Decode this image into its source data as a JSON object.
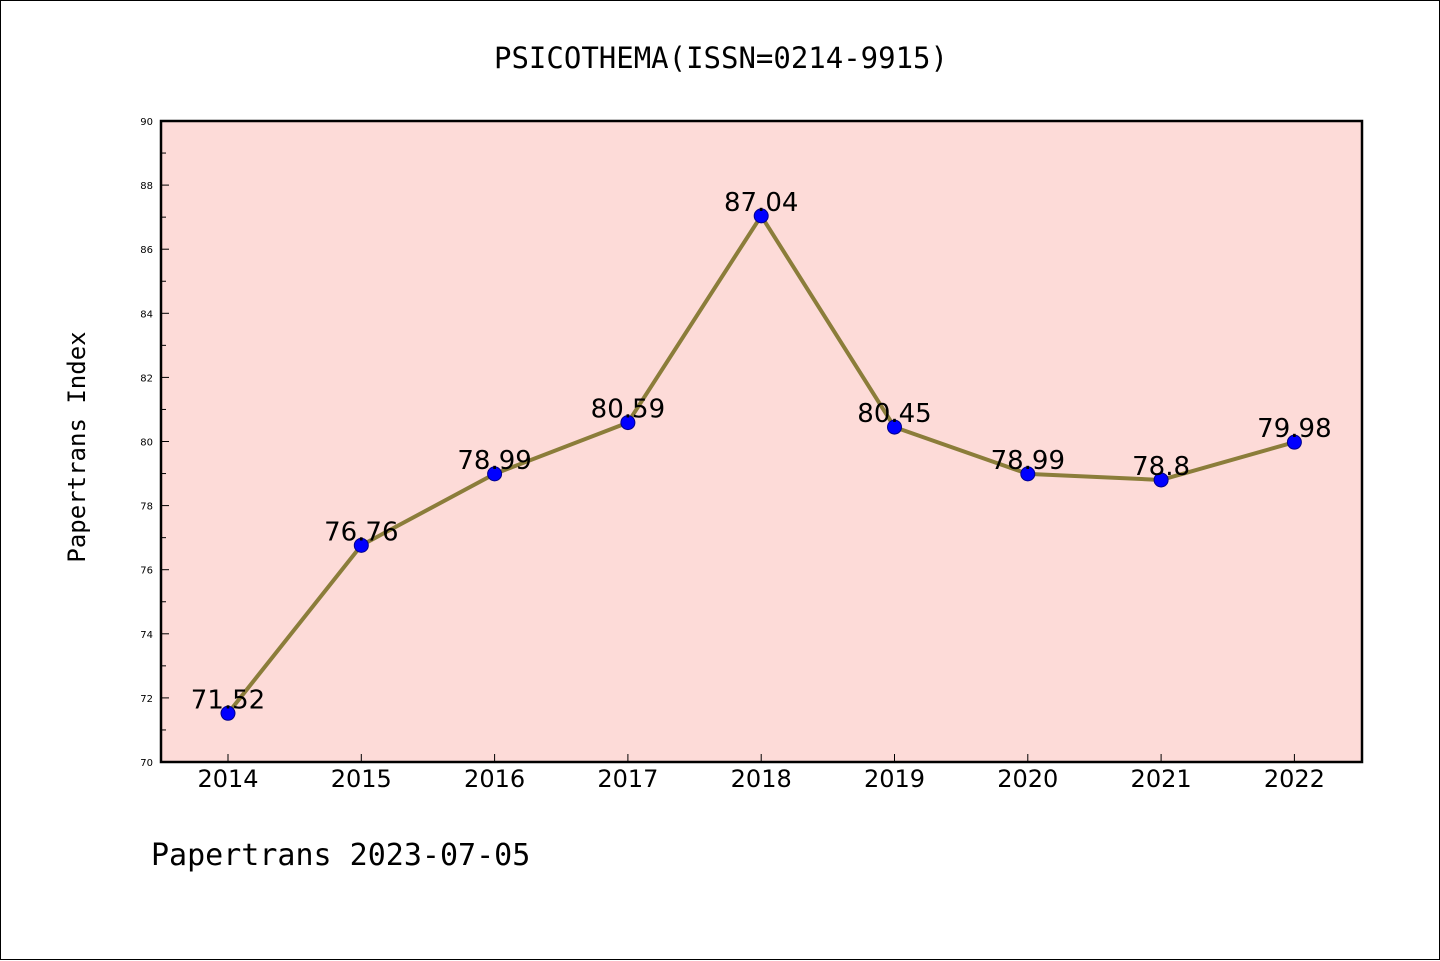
{
  "chart_data": {
    "type": "line",
    "title": "PSICOTHEMA(ISSN=0214-9915)",
    "xlabel": "",
    "ylabel": "Papertrans Index",
    "footer": "Papertrans 2023-07-05",
    "categories": [
      "2014",
      "2015",
      "2016",
      "2017",
      "2018",
      "2019",
      "2020",
      "2021",
      "2022"
    ],
    "series": [
      {
        "values": [
          71.52,
          76.76,
          78.99,
          80.59,
          87.04,
          80.45,
          78.99,
          78.8,
          79.98
        ],
        "data_labels": [
          "71.52",
          "76.76",
          "78.99",
          "80.59",
          "87.04",
          "80.45",
          "78.99",
          "78.8",
          "79.98"
        ]
      }
    ],
    "ylim": [
      70,
      90
    ],
    "yticks": [
      70,
      72,
      74,
      76,
      78,
      80,
      82,
      84,
      86,
      88,
      90
    ],
    "grid": false,
    "colors": {
      "plot_background": "#fddbd8",
      "line": "#8b7d3a",
      "marker": "#0000ff",
      "marker_edge": "#00008b",
      "axes": "#000000"
    }
  }
}
